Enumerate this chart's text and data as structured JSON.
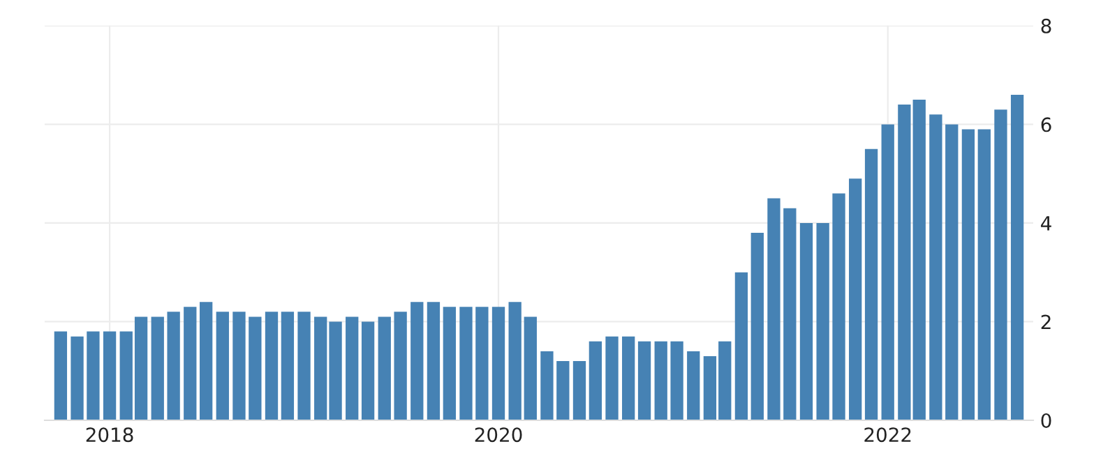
{
  "chart_data": {
    "type": "bar",
    "color": "#4682b4",
    "x": [
      "2017-10",
      "2017-11",
      "2017-12",
      "2018-01",
      "2018-02",
      "2018-03",
      "2018-04",
      "2018-05",
      "2018-06",
      "2018-07",
      "2018-08",
      "2018-09",
      "2018-10",
      "2018-11",
      "2018-12",
      "2019-01",
      "2019-02",
      "2019-03",
      "2019-04",
      "2019-05",
      "2019-06",
      "2019-07",
      "2019-08",
      "2019-09",
      "2019-10",
      "2019-11",
      "2019-12",
      "2020-01",
      "2020-02",
      "2020-03",
      "2020-04",
      "2020-05",
      "2020-06",
      "2020-07",
      "2020-08",
      "2020-09",
      "2020-10",
      "2020-11",
      "2020-12",
      "2021-01",
      "2021-02",
      "2021-03",
      "2021-04",
      "2021-05",
      "2021-06",
      "2021-07",
      "2021-08",
      "2021-09",
      "2021-10",
      "2021-11",
      "2021-12",
      "2022-01",
      "2022-02",
      "2022-03",
      "2022-04",
      "2022-05",
      "2022-06",
      "2022-07",
      "2022-08",
      "2022-09"
    ],
    "values": [
      1.8,
      1.7,
      1.8,
      1.8,
      1.8,
      2.1,
      2.1,
      2.2,
      2.3,
      2.4,
      2.2,
      2.2,
      2.1,
      2.2,
      2.2,
      2.2,
      2.1,
      2.0,
      2.1,
      2.0,
      2.1,
      2.2,
      2.4,
      2.4,
      2.3,
      2.3,
      2.3,
      2.3,
      2.4,
      2.1,
      1.4,
      1.2,
      1.2,
      1.6,
      1.7,
      1.7,
      1.6,
      1.6,
      1.6,
      1.4,
      1.3,
      1.6,
      3.0,
      3.8,
      4.5,
      4.3,
      4.0,
      4.0,
      4.6,
      4.9,
      5.5,
      6.0,
      6.4,
      6.5,
      6.2,
      6.0,
      5.9,
      5.9,
      6.3,
      6.6
    ],
    "xlim": [
      "2017-09-01",
      "2022-10-01"
    ],
    "xticks": [
      {
        "value": "2018-01",
        "label": "2018"
      },
      {
        "value": "2020-01",
        "label": "2020"
      },
      {
        "value": "2022-01",
        "label": "2022"
      }
    ],
    "ylim": [
      0,
      8
    ],
    "yticks": [
      0,
      2,
      4,
      6,
      8
    ],
    "grid": true
  }
}
